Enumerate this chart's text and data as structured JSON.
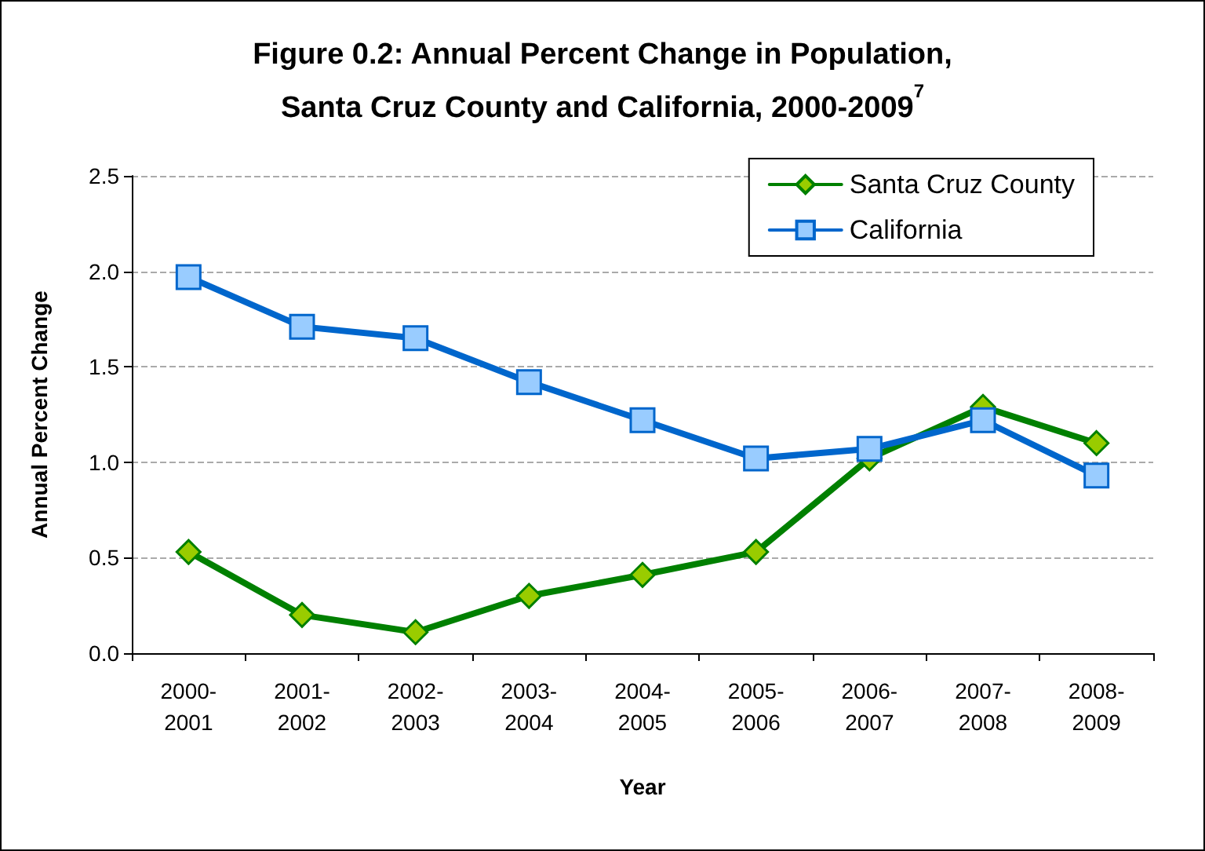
{
  "chart_data": {
    "type": "line",
    "title": "Figure 0.2: Annual Percent Change in Population,\nSanta Cruz County and California, 2000-2009$^{7}$",
    "xlabel": "Year",
    "ylabel": "Annual Percent Change",
    "categories": [
      "2000-2001",
      "2001-2002",
      "2002-2003",
      "2003-2004",
      "2004-2005",
      "2005-2006",
      "2006-2007",
      "2007-2008",
      "2008-2009"
    ],
    "series": [
      {
        "name": "Santa Cruz County",
        "color": "#008000",
        "marker": "diamond",
        "values": [
          0.53,
          0.2,
          0.11,
          0.3,
          0.41,
          0.53,
          1.02,
          1.29,
          1.1
        ]
      },
      {
        "name": "California",
        "color": "#0066cc",
        "marker": "square",
        "values": [
          1.97,
          1.71,
          1.65,
          1.42,
          1.22,
          1.02,
          1.07,
          1.22,
          0.93
        ]
      }
    ],
    "ylim": [
      0,
      2.5
    ],
    "yticks": [
      {
        "value": 0,
        "label": "0.0"
      },
      {
        "value": 0.5,
        "label": "0.5"
      },
      {
        "value": 1,
        "label": "1.0"
      },
      {
        "value": 1.5,
        "label": "1.5"
      },
      {
        "value": 2,
        "label": "2.0"
      },
      {
        "value": 2.5,
        "label": "2.5"
      }
    ],
    "grid": "y",
    "legend": "top right",
    "line_style": "solid"
  }
}
